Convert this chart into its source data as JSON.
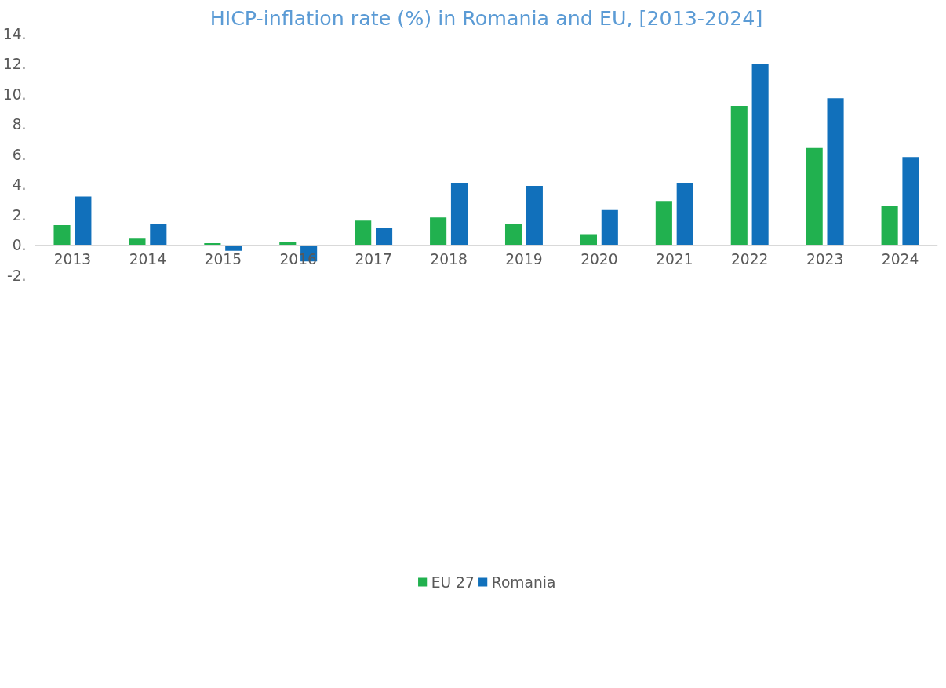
{
  "chart_data": {
    "type": "bar",
    "title": "HICP-inflation rate (%) in Romania and EU, [2013-2024]",
    "categories": [
      "2013",
      "2014",
      "2015",
      "2016",
      "2017",
      "2018",
      "2019",
      "2020",
      "2021",
      "2022",
      "2023",
      "2024"
    ],
    "series": [
      {
        "name": "EU 27",
        "color": "#21b14f",
        "values": [
          1.3,
          0.4,
          0.1,
          0.2,
          1.6,
          1.8,
          1.4,
          0.7,
          2.9,
          9.2,
          6.4,
          2.6
        ]
      },
      {
        "name": "Romania",
        "color": "#1170bb",
        "values": [
          3.2,
          1.4,
          -0.4,
          -1.1,
          1.1,
          4.1,
          3.9,
          2.3,
          4.1,
          12.0,
          9.7,
          5.8
        ]
      }
    ],
    "ylim": [
      -2,
      14
    ],
    "yticks": [
      {
        "value": -2,
        "label": "-2."
      },
      {
        "value": 0,
        "label": "0."
      },
      {
        "value": 2,
        "label": "2."
      },
      {
        "value": 4,
        "label": "4."
      },
      {
        "value": 6,
        "label": "6."
      },
      {
        "value": 8,
        "label": "8."
      },
      {
        "value": 10,
        "label": "10."
      },
      {
        "value": 12,
        "label": "12."
      },
      {
        "value": 14,
        "label": "14."
      }
    ],
    "grid": false,
    "legend": "bottom"
  }
}
